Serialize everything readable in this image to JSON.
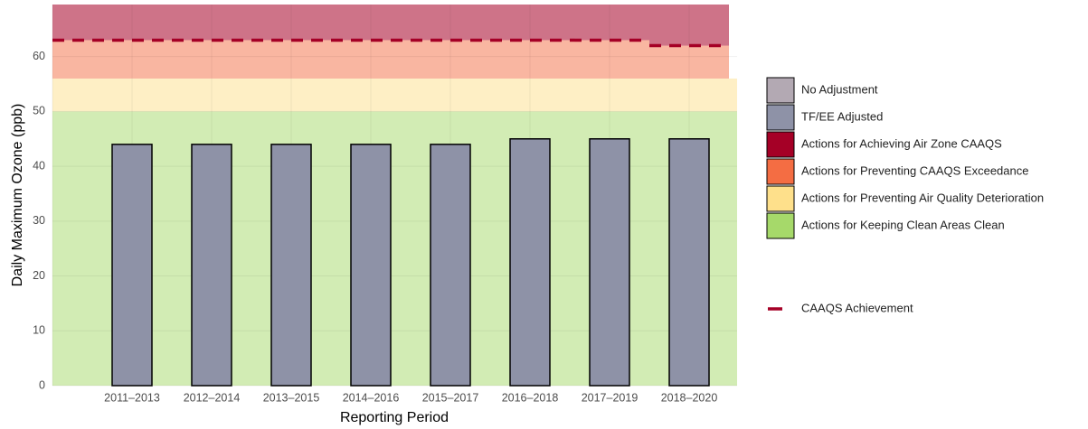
{
  "chart_data": {
    "type": "bar",
    "x_label": "Reporting Period",
    "y_label": "Daily Maximum Ozone (ppb)",
    "categories": [
      null,
      "2011–2013",
      "2012–2014",
      "2013–2015",
      "2014–2016",
      "2015–2017",
      "2016–2018",
      "2017–2019",
      "2018–2020"
    ],
    "series": [
      {
        "name": "No Adjustment",
        "color": "#b3a9b3",
        "values": [
          null,
          null,
          null,
          null,
          null,
          null,
          null,
          null,
          null
        ]
      },
      {
        "name": "TF/EE Adjusted",
        "color": "#8e92a7",
        "values": [
          null,
          44,
          44,
          44,
          44,
          44,
          45,
          45,
          45
        ]
      }
    ],
    "bands": [
      {
        "name": "Actions for Achieving Air Zone CAAQS",
        "color": "#a50026"
      },
      {
        "name": "Actions for Preventing CAAQS Exceedance",
        "color": "#f46d43",
        "from": 56
      },
      {
        "name": "Actions for Preventing Air Quality Deterioration",
        "color": "#fee08b",
        "from": 50
      },
      {
        "name": "Actions for Keeping Clean Areas Clean",
        "color": "#a6d96a",
        "from": 0
      }
    ],
    "caaqs": {
      "name": "CAAQS Achievement",
      "color": "#a50026",
      "values": [
        63,
        63,
        63,
        63,
        63,
        63,
        63,
        63,
        62
      ]
    },
    "ylim": [
      0,
      69.5
    ],
    "yticks": [
      0,
      10,
      20,
      30,
      40,
      50,
      60
    ],
    "grid": true
  }
}
